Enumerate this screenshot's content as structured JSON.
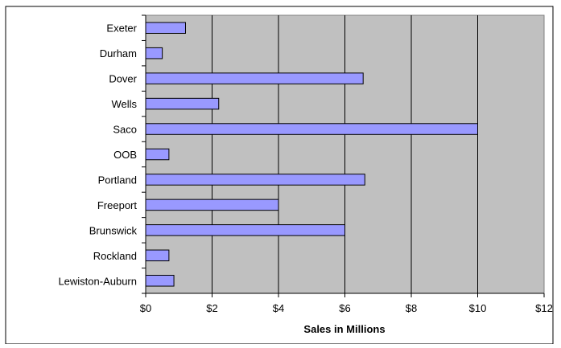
{
  "chart_data": {
    "type": "bar",
    "orientation": "horizontal",
    "categories": [
      "Exeter",
      "Durham",
      "Dover",
      "Wells",
      "Saco",
      "OOB",
      "Portland",
      "Freeport",
      "Brunswick",
      "Rockland",
      "Lewiston-Auburn"
    ],
    "values": [
      1.2,
      0.5,
      6.55,
      2.2,
      10.0,
      0.7,
      6.6,
      4.0,
      6.0,
      0.7,
      0.85
    ],
    "xlabel": "Sales in Millions",
    "xlim": [
      0,
      12
    ],
    "x_ticks": [
      0,
      2,
      4,
      6,
      8,
      10,
      12
    ],
    "x_tick_labels": [
      "$0",
      "$2",
      "$4",
      "$6",
      "$8",
      "$10",
      "$12"
    ],
    "grid": "vertical",
    "legend": "none",
    "colors": {
      "bar_fill": "#9999ff",
      "bar_stroke": "#000000",
      "plot_background": "#c0c0c0",
      "gridline": "#000000"
    }
  }
}
